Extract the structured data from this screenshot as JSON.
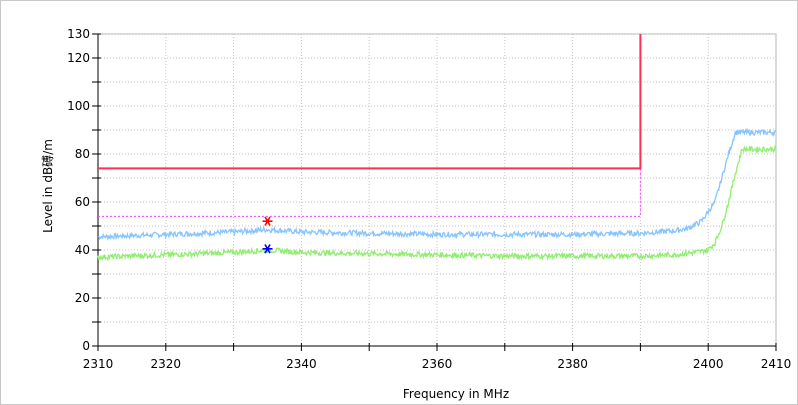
{
  "chart_data": {
    "type": "line",
    "xlabel": "Frequency in MHz",
    "ylabel": "Level in dB磗/m",
    "xlim": [
      2310,
      2410
    ],
    "ylim": [
      0,
      130
    ],
    "x_major_ticks": [
      2310,
      2320,
      2340,
      2360,
      2380,
      2400,
      2410
    ],
    "y_major_ticks": [
      0,
      20,
      40,
      60,
      80,
      100,
      120,
      130
    ],
    "grid": true,
    "series": [
      {
        "color": "#88c4ff",
        "x": [
          2310,
          2320,
          2330,
          2335,
          2340,
          2350,
          2360,
          2370,
          2380,
          2390,
          2395,
          2397,
          2399,
          2401,
          2402,
          2403,
          2404,
          2410
        ],
        "values": [
          45.5,
          46.5,
          47.5,
          48.5,
          47.5,
          47,
          46.5,
          46.5,
          46.5,
          47,
          48,
          49,
          52,
          60,
          70,
          80,
          89,
          89
        ]
      },
      {
        "color": "#90ee70",
        "x": [
          2310,
          2320,
          2330,
          2335,
          2340,
          2350,
          2360,
          2370,
          2380,
          2390,
          2395,
          2398,
          2400,
          2401,
          2402,
          2403,
          2404,
          2405,
          2410
        ],
        "values": [
          37,
          38,
          39,
          40,
          39,
          38.5,
          38,
          37.5,
          37.5,
          37.5,
          38,
          39,
          40,
          43,
          50,
          60,
          72,
          82,
          82
        ]
      },
      {
        "color": "#ff3050",
        "x": [
          2310,
          2390,
          2390
        ],
        "values": [
          74,
          74,
          130
        ]
      },
      {
        "color": "#ff40ff",
        "dashed": true,
        "x": [
          2310,
          2390,
          2390
        ],
        "values": [
          54,
          54,
          74
        ]
      }
    ],
    "markers": [
      {
        "x": 2335,
        "y": 52,
        "color": "#ff0000",
        "symbol": "*"
      },
      {
        "x": 2335,
        "y": 40.5,
        "color": "#0000ff",
        "symbol": "*"
      }
    ]
  }
}
